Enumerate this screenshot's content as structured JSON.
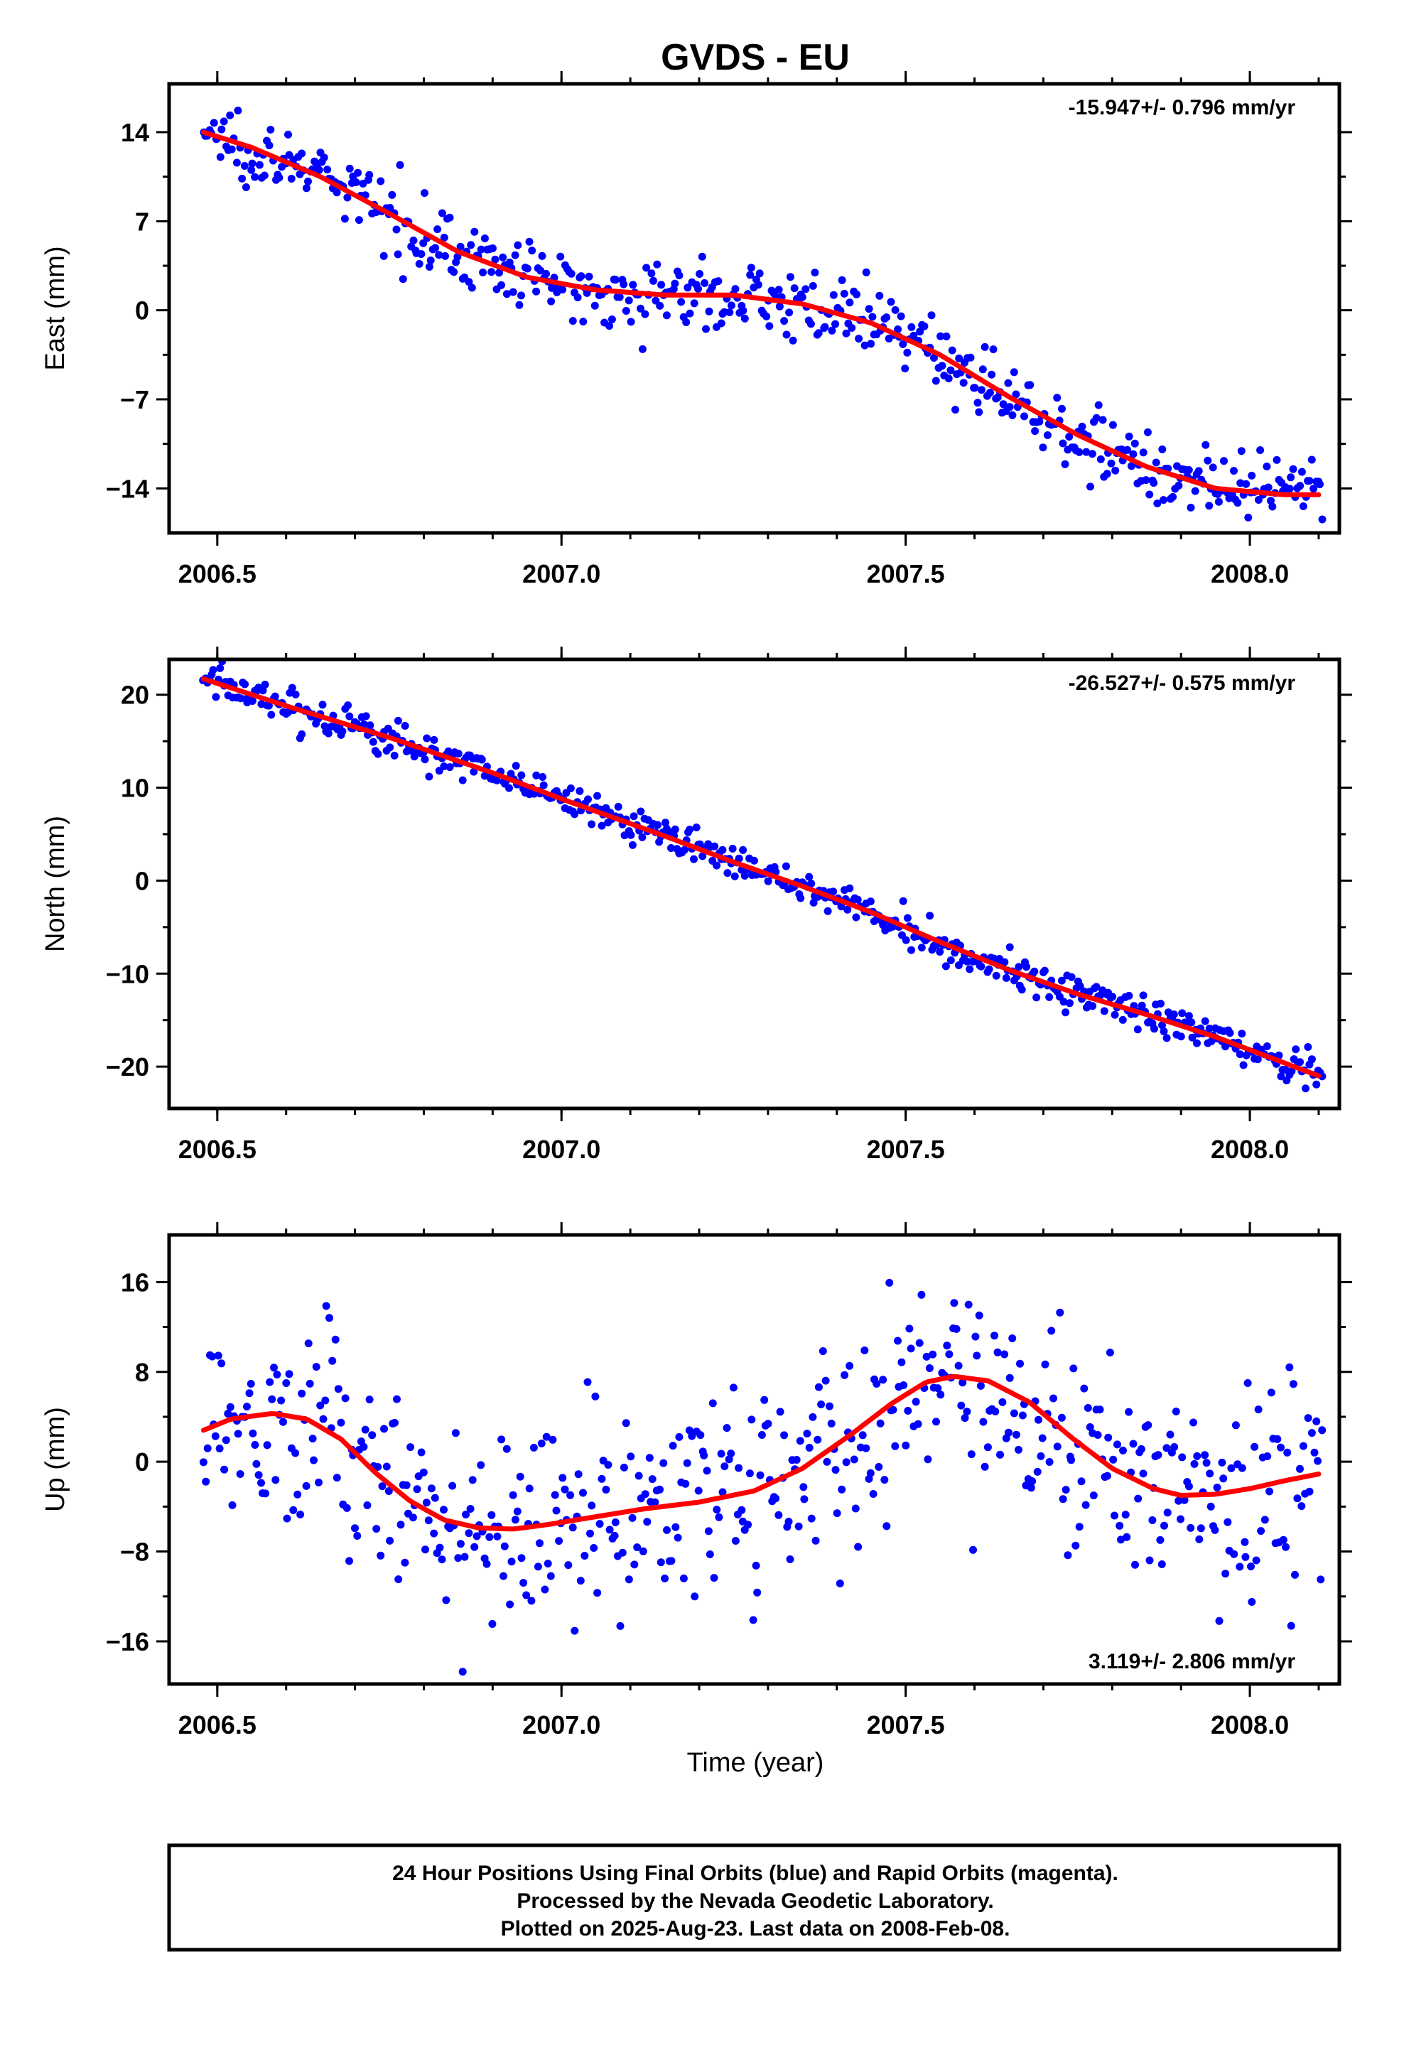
{
  "title": "GVDS - EU",
  "time_axis_label": "Time (year)",
  "footer": {
    "line1": "24 Hour Positions Using Final Orbits (blue) and Rapid Orbits (magenta).",
    "line2": "Processed by the Nevada Geodetic Laboratory.",
    "line3": "Plotted on 2025-Aug-23. Last data on 2008-Feb-08."
  },
  "colors": {
    "points": "#0000ff",
    "fit": "#ff0000",
    "frame": "#000000"
  },
  "chart_data": [
    {
      "type": "scatter",
      "ylabel": "East (mm)",
      "rate_label": "-15.947+/- 0.796 mm/yr",
      "rate_position": "top-right",
      "xlim": [
        2006.43,
        2008.13
      ],
      "ylim": [
        -17.5,
        17.8
      ],
      "xticks": [
        2006.5,
        2007.0,
        2007.5,
        2008.0
      ],
      "xtick_labels": [
        "2006.5",
        "2007.0",
        "2007.5",
        "2008.0"
      ],
      "yticks": [
        14,
        7,
        0,
        -7,
        -14
      ],
      "ytick_labels": [
        "14",
        "7",
        "0",
        "−7",
        "−14"
      ],
      "fit_curve": [
        [
          2006.48,
          14.0
        ],
        [
          2006.55,
          12.8
        ],
        [
          2006.65,
          10.5
        ],
        [
          2006.75,
          7.6
        ],
        [
          2006.85,
          4.6
        ],
        [
          2006.95,
          2.6
        ],
        [
          2007.05,
          1.6
        ],
        [
          2007.15,
          1.2
        ],
        [
          2007.25,
          1.2
        ],
        [
          2007.35,
          0.5
        ],
        [
          2007.45,
          -1.0
        ],
        [
          2007.55,
          -3.5
        ],
        [
          2007.65,
          -6.8
        ],
        [
          2007.75,
          -9.8
        ],
        [
          2007.85,
          -12.3
        ],
        [
          2007.95,
          -14.0
        ],
        [
          2008.05,
          -14.5
        ],
        [
          2008.1,
          -14.5
        ]
      ],
      "scatter_noise": 1.3
    },
    {
      "type": "scatter",
      "ylabel": "North (mm)",
      "rate_label": "-26.527+/- 0.575 mm/yr",
      "rate_position": "top-right",
      "xlim": [
        2006.43,
        2008.13
      ],
      "ylim": [
        -24.5,
        23.8
      ],
      "xticks": [
        2006.5,
        2007.0,
        2007.5,
        2008.0
      ],
      "xtick_labels": [
        "2006.5",
        "2007.0",
        "2007.5",
        "2008.0"
      ],
      "yticks": [
        20,
        10,
        0,
        -10,
        -20
      ],
      "ytick_labels": [
        "20",
        "10",
        "0",
        "−10",
        "−20"
      ],
      "fit_curve": [
        [
          2006.48,
          21.7
        ],
        [
          2006.6,
          18.8
        ],
        [
          2006.75,
          15.4
        ],
        [
          2006.9,
          11.6
        ],
        [
          2007.0,
          8.8
        ],
        [
          2007.15,
          4.8
        ],
        [
          2007.25,
          2.0
        ],
        [
          2007.35,
          -0.6
        ],
        [
          2007.45,
          -3.4
        ],
        [
          2007.55,
          -6.6
        ],
        [
          2007.65,
          -9.6
        ],
        [
          2007.75,
          -12.2
        ],
        [
          2007.85,
          -14.4
        ],
        [
          2007.95,
          -16.8
        ],
        [
          2008.05,
          -19.6
        ],
        [
          2008.1,
          -21.0
        ]
      ],
      "scatter_noise": 1.0
    },
    {
      "type": "scatter",
      "ylabel": "Up (mm)",
      "rate_label": "3.119+/- 2.806 mm/yr",
      "rate_position": "bottom-right",
      "xlim": [
        2006.43,
        2008.13
      ],
      "ylim": [
        -19.8,
        20.2
      ],
      "xticks": [
        2006.5,
        2007.0,
        2007.5,
        2008.0
      ],
      "xtick_labels": [
        "2006.5",
        "2007.0",
        "2007.5",
        "2008.0"
      ],
      "yticks": [
        16,
        8,
        0,
        -8,
        -16
      ],
      "ytick_labels": [
        "16",
        "8",
        "0",
        "−8",
        "−16"
      ],
      "fit_curve": [
        [
          2006.48,
          2.8
        ],
        [
          2006.52,
          3.8
        ],
        [
          2006.58,
          4.3
        ],
        [
          2006.63,
          3.8
        ],
        [
          2006.68,
          2.0
        ],
        [
          2006.73,
          -1.0
        ],
        [
          2006.78,
          -3.5
        ],
        [
          2006.83,
          -5.2
        ],
        [
          2006.88,
          -5.9
        ],
        [
          2006.93,
          -6.0
        ],
        [
          2006.98,
          -5.6
        ],
        [
          2007.05,
          -4.9
        ],
        [
          2007.12,
          -4.2
        ],
        [
          2007.2,
          -3.6
        ],
        [
          2007.28,
          -2.6
        ],
        [
          2007.35,
          -0.6
        ],
        [
          2007.42,
          2.4
        ],
        [
          2007.48,
          5.2
        ],
        [
          2007.53,
          7.1
        ],
        [
          2007.57,
          7.6
        ],
        [
          2007.62,
          7.2
        ],
        [
          2007.68,
          5.3
        ],
        [
          2007.74,
          2.2
        ],
        [
          2007.8,
          -0.6
        ],
        [
          2007.86,
          -2.4
        ],
        [
          2007.9,
          -3.0
        ],
        [
          2007.95,
          -2.9
        ],
        [
          2008.0,
          -2.4
        ],
        [
          2008.05,
          -1.7
        ],
        [
          2008.1,
          -1.1
        ]
      ],
      "scatter_noise": 4.6
    }
  ]
}
